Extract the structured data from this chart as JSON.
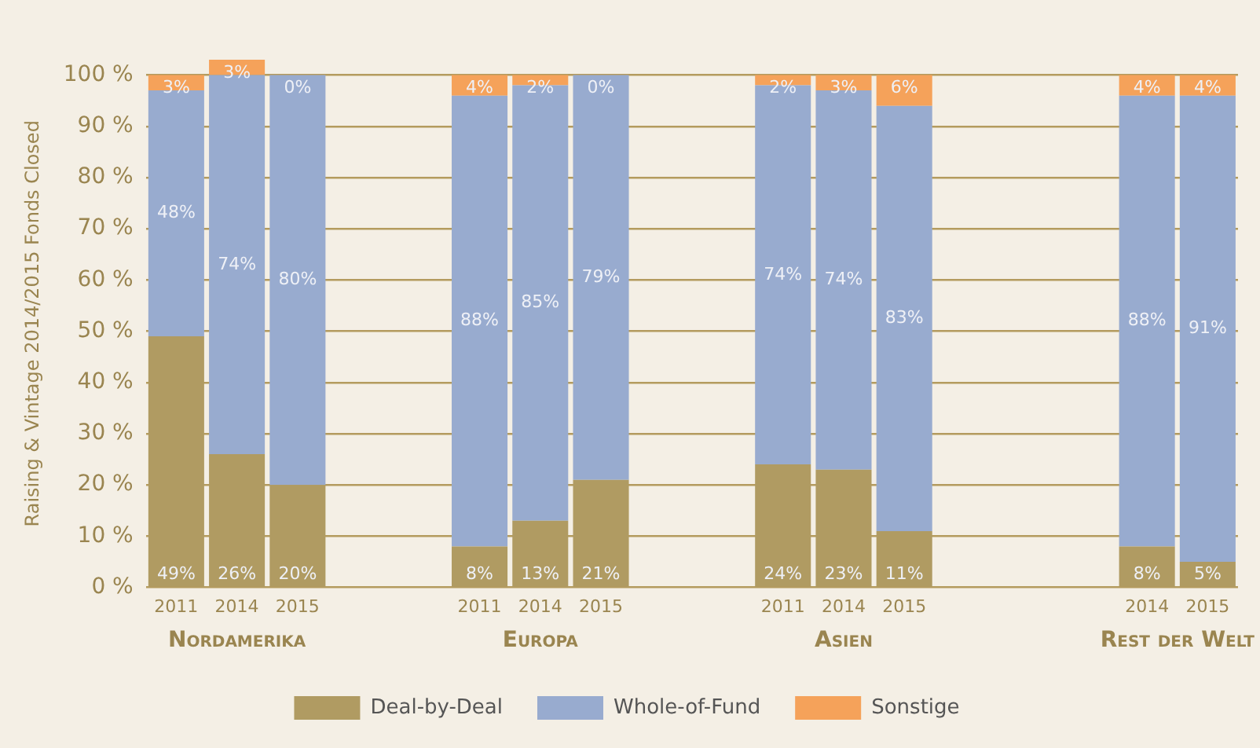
{
  "chart_data": {
    "type": "bar",
    "stacked": true,
    "ylabel": "Raising & Vintage 2014/2015 Fonds Closed",
    "categories": [
      "2011",
      "2014",
      "2015",
      null,
      null,
      "2011",
      "2014",
      "2015",
      null,
      null,
      "2011",
      "2014",
      "2015",
      null,
      null,
      null,
      "2014",
      "2015"
    ],
    "series": [
      {
        "name": "Deal-by-Deal",
        "color": "#b09b62",
        "values": [
          49,
          26,
          20,
          null,
          null,
          8,
          13,
          21,
          null,
          null,
          24,
          23,
          11,
          null,
          null,
          null,
          8,
          5
        ],
        "value_labels": [
          "49%",
          "26%",
          "20%",
          null,
          null,
          "8%",
          "13%",
          "21%",
          null,
          null,
          "24%",
          "23%",
          "11%",
          null,
          null,
          null,
          "8%",
          "5%"
        ]
      },
      {
        "name": "Whole-of-Fund",
        "color": "#98abcf",
        "values": [
          48,
          74,
          80,
          null,
          null,
          88,
          85,
          79,
          null,
          null,
          74,
          74,
          83,
          null,
          null,
          null,
          88,
          91
        ],
        "value_labels": [
          "48%",
          "74%",
          "80%",
          null,
          null,
          "88%",
          "85%",
          "79%",
          null,
          null,
          "74%",
          "74%",
          "83%",
          null,
          null,
          null,
          "88%",
          "91%"
        ]
      },
      {
        "name": "Sonstige",
        "color": "#f5a25a",
        "values": [
          3,
          3,
          0,
          null,
          null,
          4,
          2,
          0,
          null,
          null,
          2,
          3,
          6,
          null,
          null,
          null,
          4,
          4
        ],
        "value_labels": [
          "3%",
          "3%",
          "0%",
          null,
          null,
          "4%",
          "2%",
          "0%",
          null,
          null,
          "2%",
          "3%",
          "6%",
          null,
          null,
          null,
          "4%",
          "4%"
        ]
      }
    ],
    "ylim": [
      0,
      103
    ],
    "yticks": [
      {
        "value": 0,
        "label": "0 %"
      },
      {
        "value": 10,
        "label": "10 %"
      },
      {
        "value": 20,
        "label": "20 %"
      },
      {
        "value": 30,
        "label": "30 %"
      },
      {
        "value": 40,
        "label": "40 %"
      },
      {
        "value": 50,
        "label": "50 %"
      },
      {
        "value": 60,
        "label": "60 %"
      },
      {
        "value": 70,
        "label": "70 %"
      },
      {
        "value": 80,
        "label": "80 %"
      },
      {
        "value": 90,
        "label": "90 %"
      },
      {
        "value": 100,
        "label": "100 %"
      }
    ],
    "grid": "y",
    "legend": "bottom",
    "annotations": [
      "Nordamerika",
      "Europa",
      "Asien",
      "Rest der Welt"
    ]
  }
}
